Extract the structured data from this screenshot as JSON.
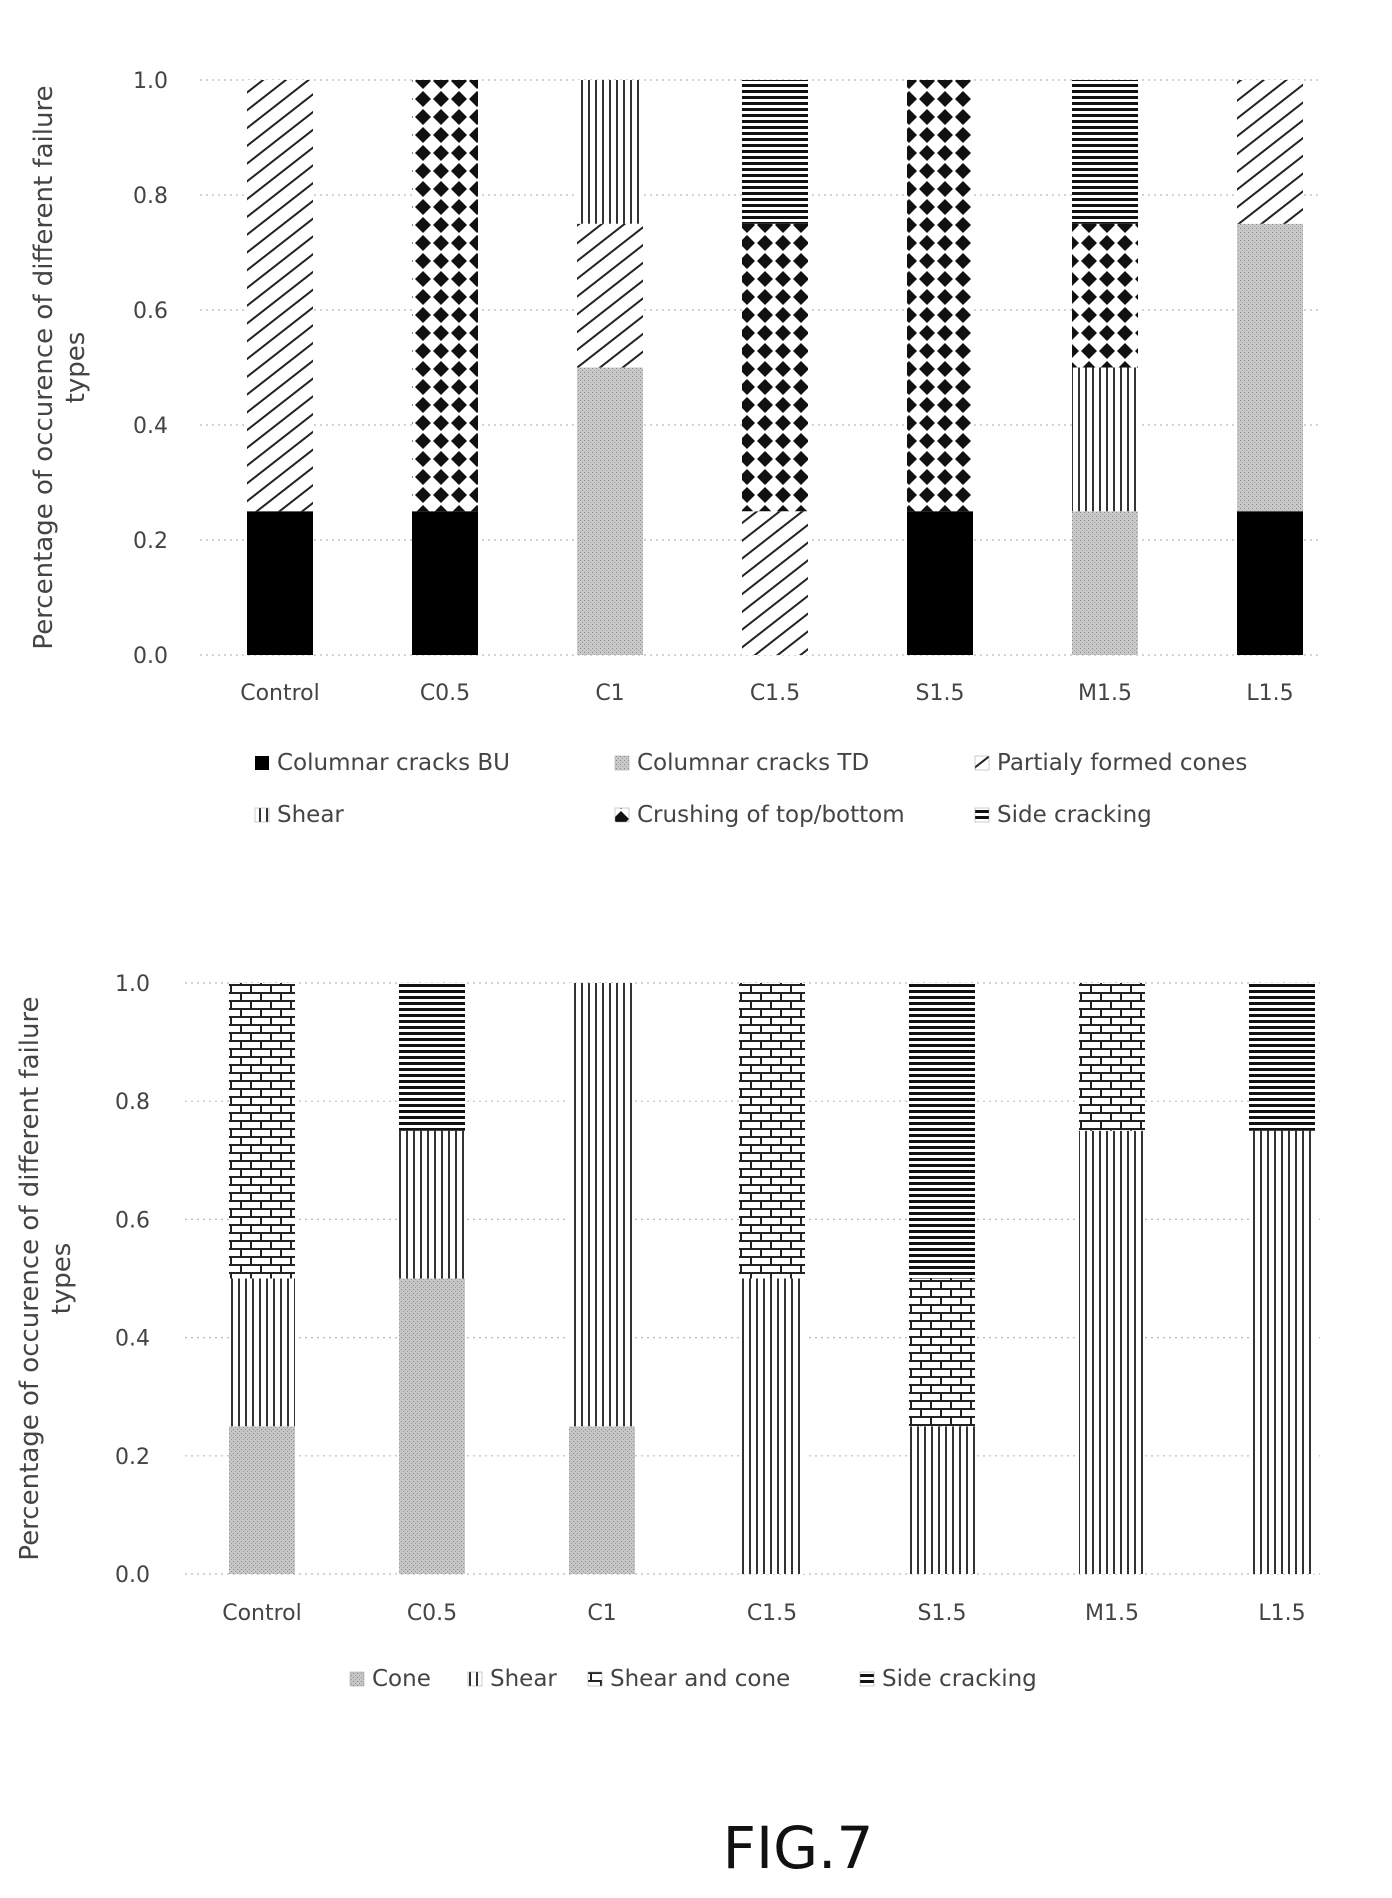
{
  "figure_label": "FIG.7",
  "legend_icons": {
    "bu": "filled-square-icon",
    "td": "dotted-square-icon",
    "partial": "diagonal-hatch-icon",
    "shear": "vertical-lines-icon",
    "crush": "diamond-icon",
    "side": "horizontal-lines-icon",
    "cone": "dotted-square-icon",
    "shear_cone": "brick-icon"
  },
  "chart_data": [
    {
      "type": "bar",
      "stacked": true,
      "title": "",
      "ylabel": "Percentage of occurence of different failure types",
      "xlabel": "",
      "categories": [
        "Control",
        "C0.5",
        "C1",
        "C1.5",
        "S1.5",
        "M1.5",
        "L1.5"
      ],
      "ylim": [
        0,
        1.0
      ],
      "yticks": [
        "0.0",
        "0.2",
        "0.4",
        "0.6",
        "0.8",
        "1.0"
      ],
      "grid": "horizontal dotted",
      "legend_position": "bottom",
      "series": [
        {
          "key": "bu",
          "name": "Columnar cracks BU",
          "values": [
            0.25,
            0.25,
            0,
            0,
            0.25,
            0,
            0.25
          ]
        },
        {
          "key": "td",
          "name": "Columnar cracks TD",
          "values": [
            0,
            0,
            0.5,
            0,
            0,
            0.25,
            0.5
          ]
        },
        {
          "key": "partial",
          "name": "Partialy formed cones",
          "values": [
            0.75,
            0,
            0.25,
            0.25,
            0,
            0,
            0.25
          ]
        },
        {
          "key": "shear",
          "name": "Shear",
          "values": [
            0,
            0,
            0.25,
            0,
            0,
            0.25,
            0
          ]
        },
        {
          "key": "crush",
          "name": "Crushing of top/bottom",
          "values": [
            0,
            0.75,
            0,
            0.5,
            0.75,
            0.25,
            0
          ]
        },
        {
          "key": "side",
          "name": "Side cracking",
          "values": [
            0,
            0,
            0,
            0.25,
            0,
            0.25,
            0
          ]
        }
      ]
    },
    {
      "type": "bar",
      "stacked": true,
      "title": "",
      "ylabel": "Percentage of occurence of different failure types",
      "xlabel": "",
      "categories": [
        "Control",
        "C0.5",
        "C1",
        "C1.5",
        "S1.5",
        "M1.5",
        "L1.5"
      ],
      "ylim": [
        0,
        1.0
      ],
      "yticks": [
        "0.0",
        "0.2",
        "0.4",
        "0.6",
        "0.8",
        "1.0"
      ],
      "grid": "horizontal dotted",
      "legend_position": "bottom",
      "series": [
        {
          "key": "cone",
          "name": "Cone",
          "values": [
            0.25,
            0.5,
            0.25,
            0,
            0,
            0,
            0
          ]
        },
        {
          "key": "shear",
          "name": "Shear",
          "values": [
            0.25,
            0.25,
            0.75,
            0.5,
            0.25,
            0.75,
            0.75
          ]
        },
        {
          "key": "shear_cone",
          "name": "Shear and cone",
          "values": [
            0.5,
            0,
            0,
            0.5,
            0.25,
            0.25,
            0
          ]
        },
        {
          "key": "side",
          "name": "Side cracking",
          "values": [
            0,
            0.25,
            0,
            0,
            0.5,
            0,
            0.25
          ]
        }
      ]
    }
  ]
}
